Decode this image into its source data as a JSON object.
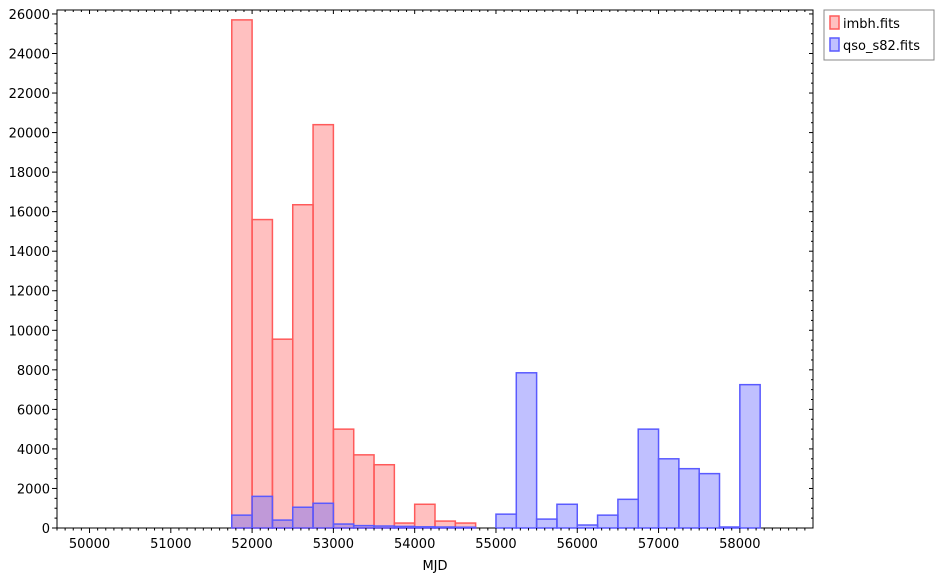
{
  "chart_data": {
    "type": "bar",
    "xlabel": "MJD",
    "ylabel": "",
    "xlim": [
      49600,
      58900
    ],
    "ylim": [
      0,
      26200
    ],
    "x_ticks": [
      50000,
      51000,
      52000,
      53000,
      54000,
      55000,
      56000,
      57000,
      58000
    ],
    "y_ticks": [
      0,
      2000,
      4000,
      6000,
      8000,
      10000,
      12000,
      14000,
      16000,
      18000,
      20000,
      22000,
      24000,
      26000
    ],
    "bin_width": 250,
    "legend_position": "top-right, outside plot",
    "series": [
      {
        "name": "imbh.fits",
        "color": "#ff5a5a",
        "bin_starts": [
          51750,
          52000,
          52250,
          52500,
          52750,
          53000,
          53250,
          53500,
          53750,
          54000,
          54250,
          54500
        ],
        "values": [
          25700,
          15600,
          9550,
          16350,
          20400,
          5000,
          3700,
          3200,
          250,
          1200,
          350,
          250
        ]
      },
      {
        "name": "qso_s82.fits",
        "color": "#5a5aff",
        "bin_starts": [
          51750,
          52000,
          52250,
          52500,
          52750,
          53000,
          53250,
          53500,
          53750,
          54000,
          54250,
          54500,
          54750,
          55000,
          55250,
          55500,
          55750,
          56000,
          56250,
          56500,
          56750,
          57000,
          57250,
          57500,
          57750,
          58000
        ],
        "values": [
          650,
          1600,
          400,
          1050,
          1250,
          200,
          120,
          100,
          80,
          60,
          50,
          40,
          0,
          700,
          7850,
          450,
          1200,
          150,
          650,
          1450,
          5000,
          3500,
          3000,
          2750,
          50,
          7250
        ]
      }
    ]
  }
}
